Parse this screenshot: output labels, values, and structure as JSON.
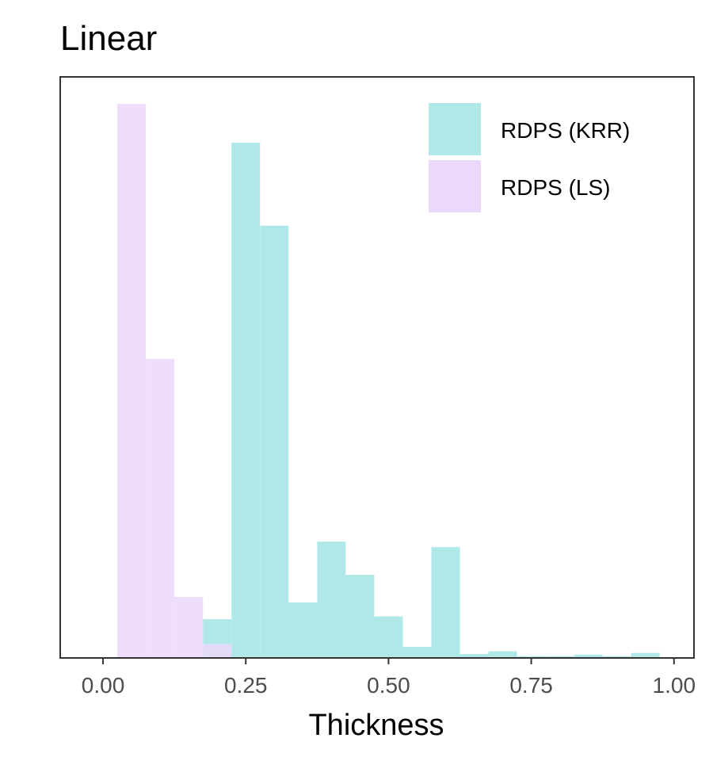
{
  "chart_data": {
    "type": "histogram",
    "title": "Linear",
    "xlabel": "Thickness",
    "ylabel": "",
    "xlim": [
      -0.075,
      1.035
    ],
    "ylim": [
      0,
      1.0
    ],
    "x_ticks": [
      "0.00",
      "0.25",
      "0.50",
      "0.75",
      "1.00"
    ],
    "x_tick_values": [
      0.0,
      0.25,
      0.5,
      0.75,
      1.0
    ],
    "y_axis_labels_shown": false,
    "grid": false,
    "legend_position": "top-right",
    "bin_width": 0.05,
    "series": [
      {
        "name": "RDPS (KRR)",
        "color": "#b0e8e8",
        "bins": [
          {
            "x0": 0.175,
            "x1": 0.225,
            "value": 0.07
          },
          {
            "x0": 0.225,
            "x1": 0.275,
            "value": 0.93
          },
          {
            "x0": 0.275,
            "x1": 0.325,
            "value": 0.78
          },
          {
            "x0": 0.325,
            "x1": 0.375,
            "value": 0.1
          },
          {
            "x0": 0.375,
            "x1": 0.425,
            "value": 0.21
          },
          {
            "x0": 0.425,
            "x1": 0.475,
            "value": 0.15
          },
          {
            "x0": 0.475,
            "x1": 0.525,
            "value": 0.075
          },
          {
            "x0": 0.525,
            "x1": 0.575,
            "value": 0.02
          },
          {
            "x0": 0.575,
            "x1": 0.625,
            "value": 0.2
          },
          {
            "x0": 0.625,
            "x1": 0.675,
            "value": 0.007
          },
          {
            "x0": 0.675,
            "x1": 0.725,
            "value": 0.012
          },
          {
            "x0": 0.725,
            "x1": 0.775,
            "value": 0.003
          },
          {
            "x0": 0.775,
            "x1": 0.825,
            "value": 0.003
          },
          {
            "x0": 0.825,
            "x1": 0.875,
            "value": 0.006
          },
          {
            "x0": 0.875,
            "x1": 0.925,
            "value": 0.003
          },
          {
            "x0": 0.925,
            "x1": 0.975,
            "value": 0.009
          }
        ]
      },
      {
        "name": "RDPS (LS)",
        "color": "#ecd8fa",
        "bins": [
          {
            "x0": 0.025,
            "x1": 0.075,
            "value": 1.0
          },
          {
            "x0": 0.075,
            "x1": 0.125,
            "value": 0.54
          },
          {
            "x0": 0.125,
            "x1": 0.175,
            "value": 0.11
          },
          {
            "x0": 0.175,
            "x1": 0.225,
            "value": 0.025
          }
        ]
      }
    ]
  }
}
